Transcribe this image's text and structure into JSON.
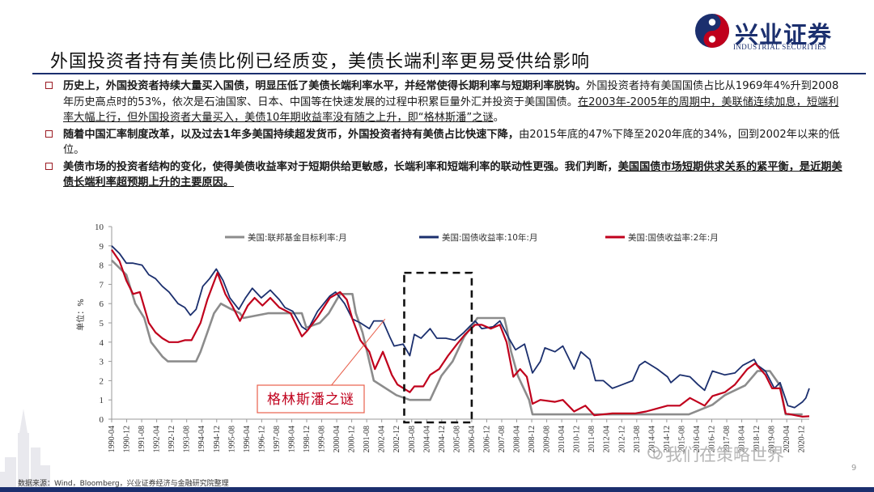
{
  "brand": {
    "name_cn": "兴业证券",
    "name_en": "INDUSTRIAL SECURITIES"
  },
  "title": "外国投资者持有美债比例已经质变，美债长端利率更易受供给影响",
  "bullets": [
    {
      "bold": "历史上，外国投资者持续大量买入国债，明显压低了美债长端利率水平，并经常使得长期利率与短期利率脱钩。",
      "text": "外国投资者持有美国国债占比从1969年4%升到2008年历史高点时的53%，依次是石油国家、日本、中国等在快速发展的过程中积累巨量外汇并投资于美国国债。",
      "underline": "在2003年-2005年的周期中，美联储连续加息，短端利率大幅上行，但外国投资者大量买入，美债10年期收益率没有随之上升，即“格林斯潘”之谜",
      "tail": "。"
    },
    {
      "bold": "随着中国汇率制度改革，以及过去1年多美国持续超发货币，外国投资者持有美债占比快速下降，",
      "text": "由2015年底的47%下降至2020年底的34%，回到2002年以来的低位。",
      "underline": "",
      "tail": ""
    },
    {
      "bold": "美债市场的投资者结构的变化，使得美债收益率对于短期供给更敏感，长端利率和短端利率的联动性更强。我们判断，",
      "text": "",
      "underline": "美国国债市场短期供求关系的紧平衡，是近期美债长端利率超预期上升的主要原因。",
      "tail": ""
    }
  ],
  "footer": "数据来源：Wind，Bloomberg，兴业证券经济与金融研究院整理",
  "watermark": "我们在策略世界",
  "page_number": "9",
  "colors": {
    "fed_funds": "#8c8c8c",
    "us10y": "#1b2f6e",
    "us2y": "#c0001c",
    "accent": "#9b1b23"
  },
  "chart_data": {
    "type": "line",
    "ylabel": "单位：%",
    "ylim": [
      0,
      10
    ],
    "yticks": [
      0,
      1,
      2,
      3,
      4,
      5,
      6,
      7,
      8,
      9,
      10
    ],
    "x_ticks": [
      "1990-04",
      "1990-12",
      "1991-08",
      "1992-04",
      "1992-12",
      "1993-08",
      "1994-04",
      "1994-12",
      "1995-08",
      "1996-04",
      "1996-12",
      "1997-08",
      "1998-04",
      "1998-12",
      "1999-08",
      "2000-04",
      "2000-12",
      "2001-08",
      "2002-04",
      "2002-12",
      "2003-08",
      "2004-04",
      "2004-12",
      "2005-08",
      "2006-04",
      "2006-12",
      "2007-08",
      "2008-04",
      "2008-12",
      "2009-08",
      "2010-04",
      "2010-12",
      "2011-08",
      "2012-04",
      "2012-12",
      "2013-08",
      "2014-04",
      "2014-12",
      "2015-08",
      "2016-04",
      "2016-12",
      "2017-08",
      "2018-04",
      "2018-12",
      "2019-08",
      "2020-04",
      "2020-12"
    ],
    "legend_position": "top",
    "series": [
      {
        "name": "美国:联邦基金目标利率:月",
        "key": "fed_funds",
        "points": [
          [
            1990.25,
            8.25
          ],
          [
            1990.9,
            7.5
          ],
          [
            1991.3,
            6.0
          ],
          [
            1991.7,
            5.25
          ],
          [
            1992.0,
            4.0
          ],
          [
            1992.5,
            3.25
          ],
          [
            1992.75,
            3.0
          ],
          [
            1994.0,
            3.0
          ],
          [
            1994.2,
            3.5
          ],
          [
            1994.5,
            4.5
          ],
          [
            1994.8,
            5.5
          ],
          [
            1995.1,
            6.0
          ],
          [
            1995.5,
            5.75
          ],
          [
            1995.95,
            5.5
          ],
          [
            1996.1,
            5.25
          ],
          [
            1997.2,
            5.5
          ],
          [
            1998.7,
            5.5
          ],
          [
            1998.9,
            4.75
          ],
          [
            1999.5,
            5.0
          ],
          [
            1999.9,
            5.5
          ],
          [
            2000.4,
            6.5
          ],
          [
            2000.95,
            6.5
          ],
          [
            2001.1,
            5.5
          ],
          [
            2001.4,
            4.5
          ],
          [
            2001.6,
            3.5
          ],
          [
            2001.9,
            2.0
          ],
          [
            2002.9,
            1.25
          ],
          [
            2003.5,
            1.0
          ],
          [
            2004.4,
            1.0
          ],
          [
            2004.6,
            1.5
          ],
          [
            2004.9,
            2.25
          ],
          [
            2005.4,
            3.0
          ],
          [
            2005.9,
            4.25
          ],
          [
            2006.5,
            5.25
          ],
          [
            2007.7,
            5.25
          ],
          [
            2007.8,
            4.75
          ],
          [
            2008.0,
            3.5
          ],
          [
            2008.3,
            2.25
          ],
          [
            2008.8,
            1.0
          ],
          [
            2008.95,
            0.25
          ],
          [
            2015.9,
            0.25
          ],
          [
            2016.95,
            0.75
          ],
          [
            2017.5,
            1.25
          ],
          [
            2017.95,
            1.5
          ],
          [
            2018.4,
            1.75
          ],
          [
            2018.95,
            2.5
          ],
          [
            2019.5,
            2.5
          ],
          [
            2019.8,
            2.0
          ],
          [
            2019.95,
            1.75
          ],
          [
            2020.2,
            0.25
          ],
          [
            2020.95,
            0.25
          ]
        ]
      },
      {
        "name": "美国:国债收益率:10年:月",
        "key": "us10y",
        "points": [
          [
            1990.25,
            9.0
          ],
          [
            1990.6,
            8.6
          ],
          [
            1990.9,
            8.1
          ],
          [
            1991.2,
            8.1
          ],
          [
            1991.6,
            8.0
          ],
          [
            1991.9,
            7.5
          ],
          [
            1992.2,
            7.3
          ],
          [
            1992.5,
            6.9
          ],
          [
            1992.8,
            6.6
          ],
          [
            1993.2,
            6.0
          ],
          [
            1993.5,
            5.8
          ],
          [
            1993.75,
            5.4
          ],
          [
            1994.0,
            5.7
          ],
          [
            1994.3,
            6.9
          ],
          [
            1994.6,
            7.3
          ],
          [
            1994.9,
            7.8
          ],
          [
            1995.2,
            7.2
          ],
          [
            1995.5,
            6.3
          ],
          [
            1995.9,
            5.7
          ],
          [
            1996.2,
            6.3
          ],
          [
            1996.5,
            6.8
          ],
          [
            1996.9,
            6.3
          ],
          [
            1997.3,
            6.7
          ],
          [
            1997.7,
            6.2
          ],
          [
            1997.95,
            5.8
          ],
          [
            1998.3,
            5.6
          ],
          [
            1998.7,
            4.8
          ],
          [
            1998.95,
            4.6
          ],
          [
            1999.4,
            5.6
          ],
          [
            1999.95,
            6.4
          ],
          [
            2000.2,
            6.6
          ],
          [
            2000.6,
            6.0
          ],
          [
            2000.95,
            5.2
          ],
          [
            2001.3,
            5.0
          ],
          [
            2001.7,
            4.7
          ],
          [
            2001.9,
            5.1
          ],
          [
            2002.3,
            5.1
          ],
          [
            2002.6,
            4.3
          ],
          [
            2002.8,
            3.8
          ],
          [
            2003.2,
            3.9
          ],
          [
            2003.5,
            3.3
          ],
          [
            2003.7,
            4.4
          ],
          [
            2004.0,
            4.2
          ],
          [
            2004.4,
            4.7
          ],
          [
            2004.7,
            4.2
          ],
          [
            2005.1,
            4.2
          ],
          [
            2005.5,
            4.1
          ],
          [
            2005.9,
            4.5
          ],
          [
            2006.4,
            5.1
          ],
          [
            2006.7,
            4.7
          ],
          [
            2007.2,
            4.8
          ],
          [
            2007.5,
            5.1
          ],
          [
            2007.9,
            4.2
          ],
          [
            2008.2,
            3.6
          ],
          [
            2008.6,
            3.9
          ],
          [
            2008.95,
            2.4
          ],
          [
            2009.3,
            3.0
          ],
          [
            2009.5,
            3.7
          ],
          [
            2009.95,
            3.5
          ],
          [
            2010.3,
            3.8
          ],
          [
            2010.8,
            2.6
          ],
          [
            2011.1,
            3.5
          ],
          [
            2011.5,
            3.1
          ],
          [
            2011.75,
            2.0
          ],
          [
            2012.1,
            2.0
          ],
          [
            2012.5,
            1.6
          ],
          [
            2012.95,
            1.8
          ],
          [
            2013.4,
            2.0
          ],
          [
            2013.7,
            2.8
          ],
          [
            2013.95,
            3.0
          ],
          [
            2014.5,
            2.6
          ],
          [
            2014.95,
            2.2
          ],
          [
            2015.1,
            1.9
          ],
          [
            2015.5,
            2.3
          ],
          [
            2015.95,
            2.2
          ],
          [
            2016.3,
            1.8
          ],
          [
            2016.6,
            1.5
          ],
          [
            2016.95,
            2.5
          ],
          [
            2017.5,
            2.3
          ],
          [
            2017.95,
            2.4
          ],
          [
            2018.3,
            2.8
          ],
          [
            2018.8,
            3.1
          ],
          [
            2018.95,
            2.8
          ],
          [
            2019.3,
            2.5
          ],
          [
            2019.7,
            1.6
          ],
          [
            2019.95,
            1.9
          ],
          [
            2020.3,
            0.7
          ],
          [
            2020.6,
            0.6
          ],
          [
            2020.95,
            0.9
          ],
          [
            2021.1,
            1.1
          ],
          [
            2021.25,
            1.6
          ]
        ]
      },
      {
        "name": "美国:国债收益率:2年:月",
        "key": "us2y",
        "points": [
          [
            1990.25,
            8.8
          ],
          [
            1990.6,
            8.2
          ],
          [
            1990.9,
            7.2
          ],
          [
            1991.2,
            6.5
          ],
          [
            1991.5,
            6.6
          ],
          [
            1991.9,
            5.0
          ],
          [
            1992.2,
            4.5
          ],
          [
            1992.5,
            4.2
          ],
          [
            1992.8,
            4.0
          ],
          [
            1993.2,
            4.0
          ],
          [
            1993.5,
            4.1
          ],
          [
            1993.8,
            4.1
          ],
          [
            1994.2,
            5.0
          ],
          [
            1994.5,
            6.2
          ],
          [
            1994.95,
            7.6
          ],
          [
            1995.3,
            6.5
          ],
          [
            1995.6,
            5.9
          ],
          [
            1995.95,
            5.1
          ],
          [
            1996.3,
            5.9
          ],
          [
            1996.6,
            6.3
          ],
          [
            1996.95,
            5.9
          ],
          [
            1997.3,
            6.3
          ],
          [
            1997.7,
            5.8
          ],
          [
            1998.2,
            5.5
          ],
          [
            1998.7,
            4.3
          ],
          [
            1998.95,
            4.6
          ],
          [
            1999.4,
            5.3
          ],
          [
            1999.95,
            6.3
          ],
          [
            2000.4,
            6.6
          ],
          [
            2000.7,
            6.2
          ],
          [
            2000.95,
            5.2
          ],
          [
            2001.3,
            4.1
          ],
          [
            2001.7,
            3.5
          ],
          [
            2001.95,
            2.6
          ],
          [
            2002.3,
            3.5
          ],
          [
            2002.7,
            2.3
          ],
          [
            2002.95,
            1.8
          ],
          [
            2003.5,
            1.4
          ],
          [
            2003.7,
            1.7
          ],
          [
            2004.1,
            1.7
          ],
          [
            2004.4,
            2.3
          ],
          [
            2004.8,
            2.6
          ],
          [
            2005.2,
            3.3
          ],
          [
            2005.6,
            3.9
          ],
          [
            2005.95,
            4.4
          ],
          [
            2006.4,
            4.9
          ],
          [
            2006.7,
            4.9
          ],
          [
            2007.1,
            4.7
          ],
          [
            2007.5,
            4.9
          ],
          [
            2007.8,
            4.0
          ],
          [
            2008.1,
            2.2
          ],
          [
            2008.4,
            2.6
          ],
          [
            2008.7,
            2.2
          ],
          [
            2008.95,
            0.8
          ],
          [
            2009.3,
            1.0
          ],
          [
            2009.95,
            0.9
          ],
          [
            2010.3,
            1.0
          ],
          [
            2010.8,
            0.4
          ],
          [
            2011.3,
            0.7
          ],
          [
            2011.7,
            0.2
          ],
          [
            2012.5,
            0.3
          ],
          [
            2013.5,
            0.3
          ],
          [
            2014.0,
            0.4
          ],
          [
            2014.95,
            0.7
          ],
          [
            2015.5,
            0.7
          ],
          [
            2015.95,
            1.1
          ],
          [
            2016.6,
            0.7
          ],
          [
            2016.95,
            1.2
          ],
          [
            2017.5,
            1.4
          ],
          [
            2017.95,
            1.8
          ],
          [
            2018.5,
            2.6
          ],
          [
            2018.85,
            2.9
          ],
          [
            2019.3,
            2.3
          ],
          [
            2019.6,
            1.6
          ],
          [
            2019.95,
            1.6
          ],
          [
            2020.2,
            0.3
          ],
          [
            2020.95,
            0.13
          ],
          [
            2021.25,
            0.15
          ]
        ]
      }
    ],
    "annotation": {
      "label": "格林斯潘之谜",
      "start": 2003.25,
      "end": 2006.25,
      "ymin": 0,
      "ymax": 7.6
    }
  }
}
